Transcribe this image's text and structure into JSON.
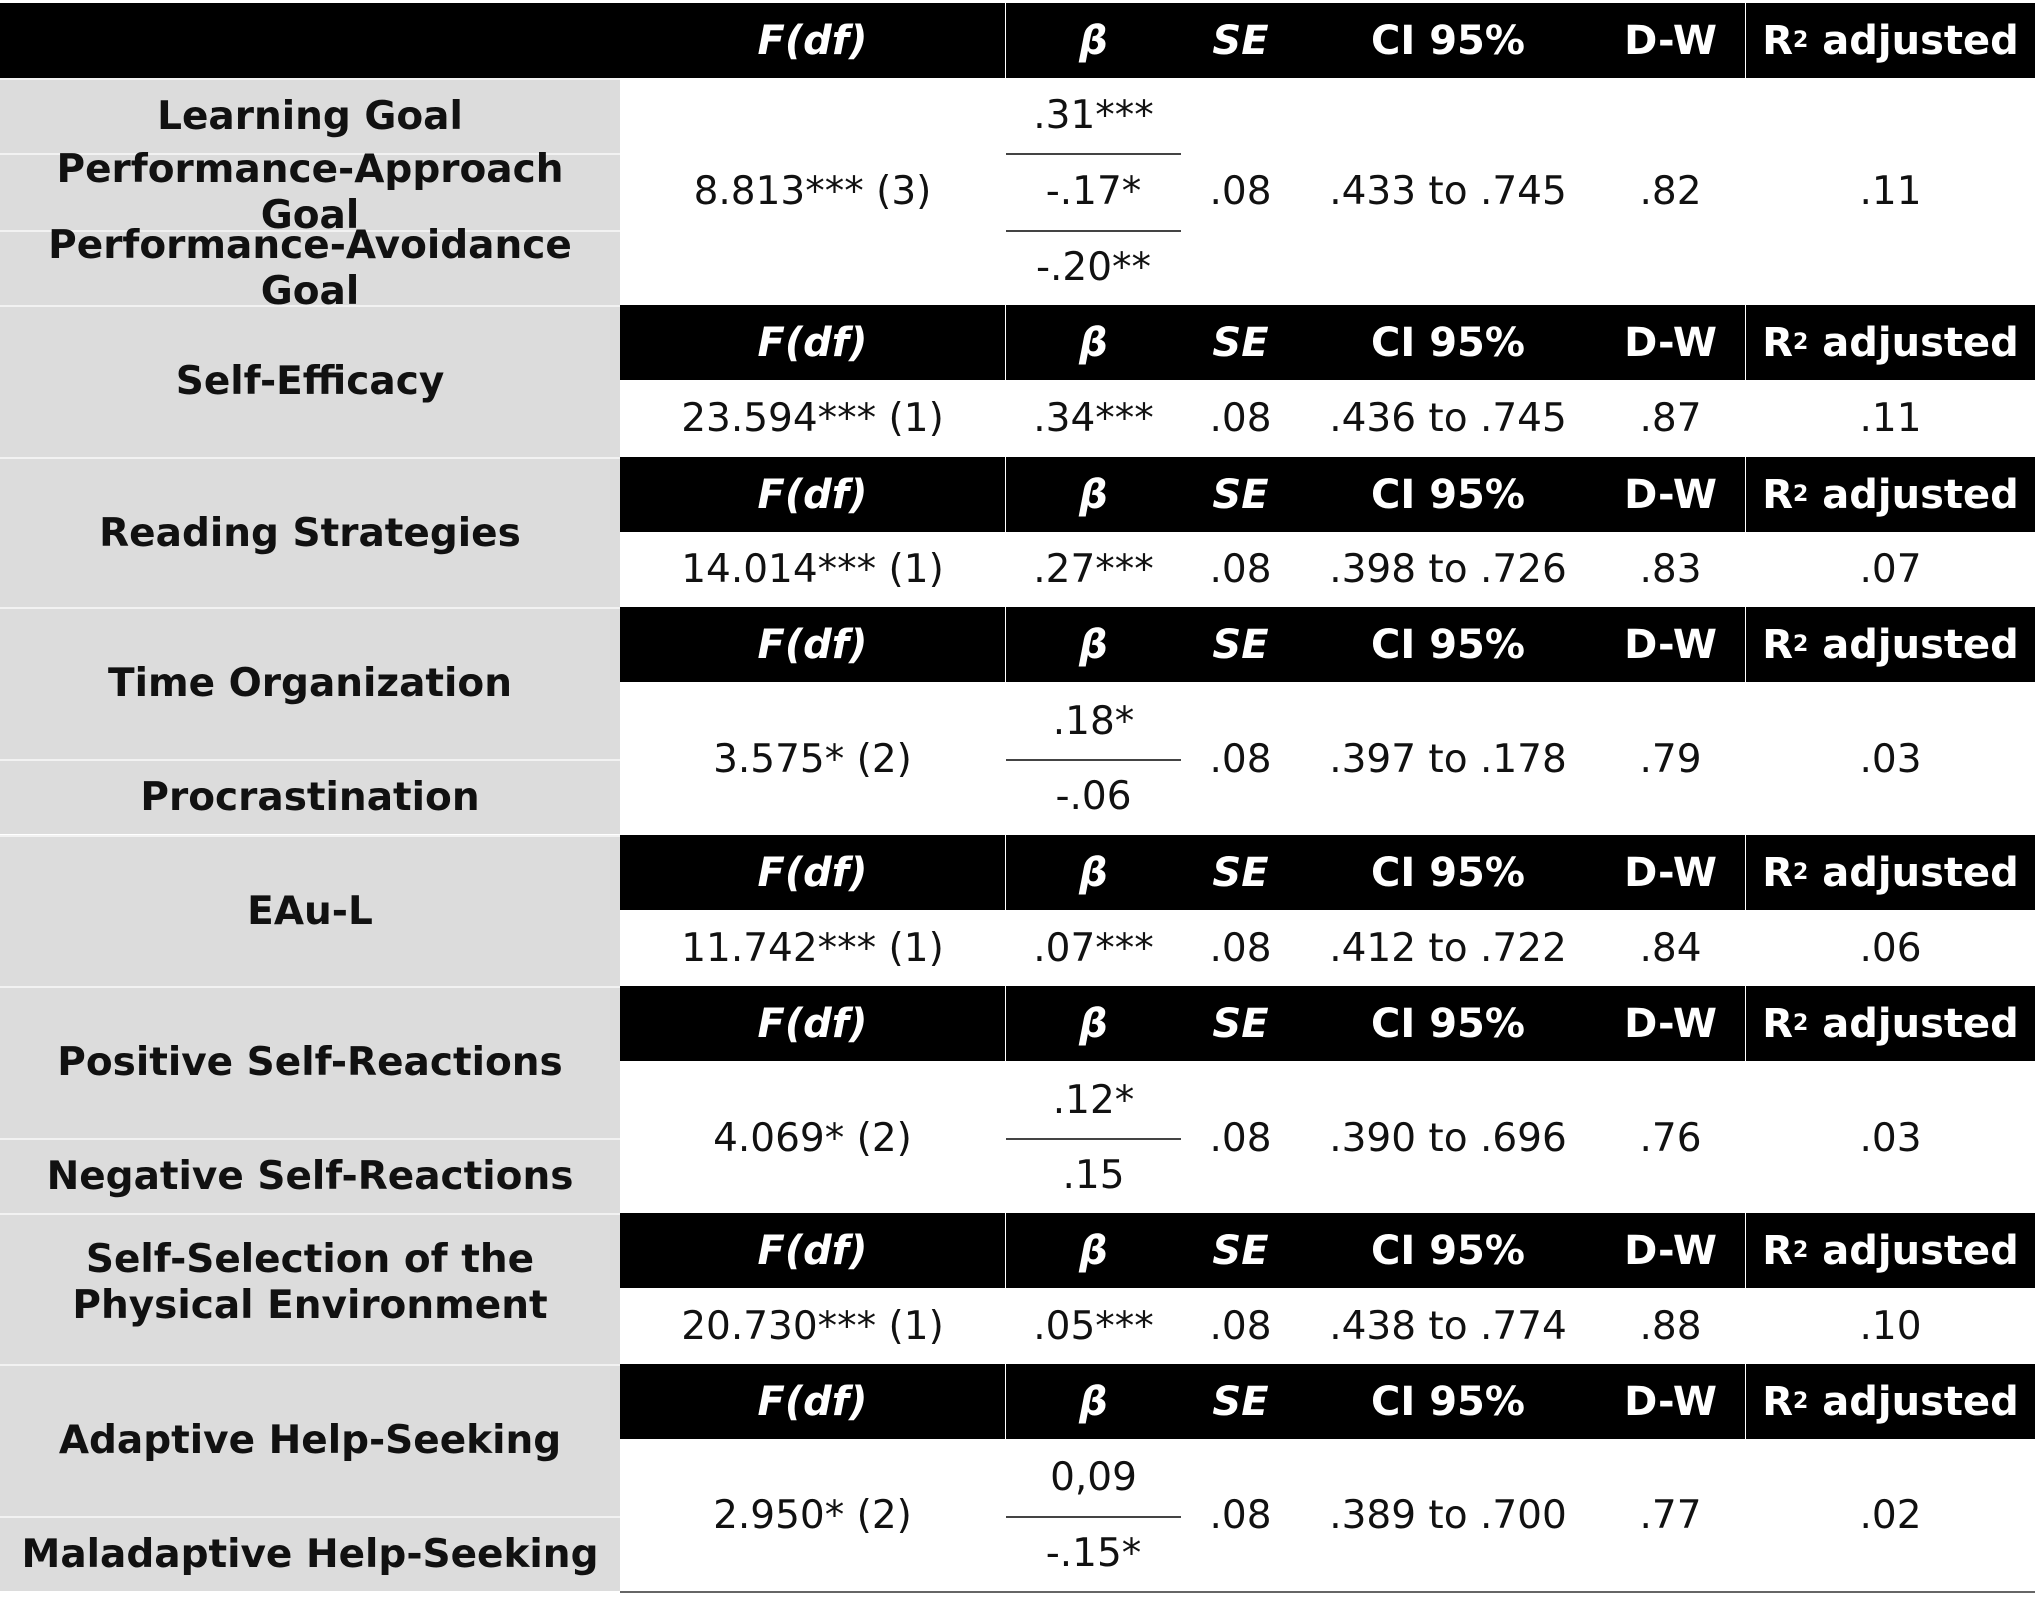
{
  "headers": [
    "F(df)",
    "β",
    "SE",
    "CI 95%",
    "D-W",
    "R"
  ],
  "r2_suffix": " adjusted",
  "r2_sup": "2",
  "groups": [
    {
      "labels": [
        "Learning Goal",
        "Performance-Approach Goal",
        "Performance-Avoidance Goal"
      ],
      "f": "8.813*** (3)",
      "betas": [
        ".31***",
        "-.17*",
        "-.20**"
      ],
      "se": ".08",
      "ci": ".433 to .745",
      "dw": ".82",
      "r2": ".11"
    },
    {
      "labels": [
        "Self-Efficacy"
      ],
      "f": "23.594*** (1)",
      "betas": [
        ".34***"
      ],
      "se": ".08",
      "ci": ".436 to .745",
      "dw": ".87",
      "r2": ".11"
    },
    {
      "labels": [
        "Reading Strategies"
      ],
      "f": "14.014*** (1)",
      "betas": [
        ".27***"
      ],
      "se": ".08",
      "ci": ".398 to .726",
      "dw": ".83",
      "r2": ".07"
    },
    {
      "labels": [
        "Time Organization",
        "Procrastination"
      ],
      "f": "3.575* (2)",
      "betas": [
        ".18*",
        "-.06"
      ],
      "se": ".08",
      "ci": ".397 to .178",
      "dw": ".79",
      "r2": ".03"
    },
    {
      "labels": [
        "EAu-L"
      ],
      "f": "11.742*** (1)",
      "betas": [
        ".07***"
      ],
      "se": ".08",
      "ci": ".412 to .722",
      "dw": ".84",
      "r2": ".06"
    },
    {
      "labels": [
        "Positive Self-Reactions",
        "Negative Self-Reactions"
      ],
      "f": "4.069* (2)",
      "betas": [
        ".12*",
        ".15"
      ],
      "se": ".08",
      "ci": ".390 to .696",
      "dw": ".76",
      "r2": ".03"
    },
    {
      "labels": [
        "Self-Selection of the Physical Environment"
      ],
      "f": "20.730*** (1)",
      "betas": [
        ".05***"
      ],
      "se": ".08",
      "ci": ".438 to .774",
      "dw": ".88",
      "r2": ".10"
    },
    {
      "labels": [
        "Adaptive Help-Seeking",
        "Maladaptive Help-Seeking"
      ],
      "f": "2.950* (2)",
      "betas": [
        "0,09",
        "-.15*"
      ],
      "se": ".08",
      "ci": ".389 to .700",
      "dw": ".77",
      "r2": ".02"
    }
  ]
}
